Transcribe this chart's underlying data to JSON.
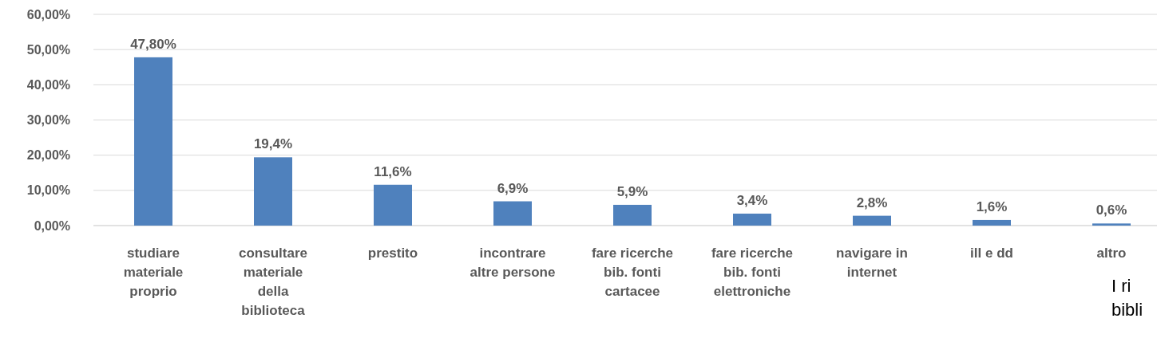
{
  "chart_data": {
    "type": "bar",
    "categories": [
      "studiare materiale proprio",
      "consultare materiale della biblioteca",
      "prestito",
      "incontrare altre persone",
      "fare ricerche bib. fonti cartacee",
      "fare ricerche bib. fonti elettroniche",
      "navigare in internet",
      "ill e dd",
      "altro"
    ],
    "values": [
      47.8,
      19.4,
      11.6,
      6.9,
      5.9,
      3.4,
      2.8,
      1.6,
      0.6
    ],
    "value_labels": [
      "47,80%",
      "19,4%",
      "11,6%",
      "6,9%",
      "5,9%",
      "3,4%",
      "2,8%",
      "1,6%",
      "0,6%"
    ],
    "color": "#4f81bd",
    "ylim": [
      0,
      60
    ],
    "yticks": [
      {
        "value": 0,
        "label": "0,00%"
      },
      {
        "value": 10,
        "label": "10,00%"
      },
      {
        "value": 20,
        "label": "20,00%"
      },
      {
        "value": 30,
        "label": "30,00%"
      },
      {
        "value": 40,
        "label": "40,00%"
      },
      {
        "value": 50,
        "label": "50,00%"
      },
      {
        "value": 60,
        "label": "60,00%"
      }
    ],
    "grid": "y",
    "annotations": [
      "I ri",
      "bibli"
    ]
  }
}
